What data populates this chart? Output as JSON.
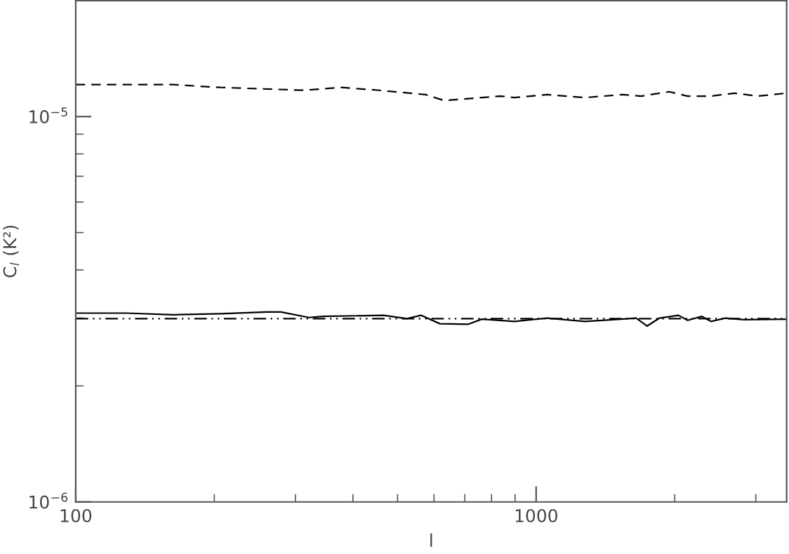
{
  "chart_data": {
    "type": "line",
    "xlabel": "l",
    "ylabel": "C$_{l}$ (K²)",
    "log": "xy",
    "xlim": [
      100,
      3500
    ],
    "ylim": [
      1e-06,
      2e-05
    ],
    "xticks": [
      100,
      1000
    ],
    "yticks": [
      {
        "value": 1e-06,
        "label": "10$^{−6}$"
      },
      {
        "value": 1e-05,
        "label": "10$^{−5}$"
      }
    ],
    "grid": false,
    "series": [
      {
        "color": "#000000",
        "line_style": "solid",
        "x": [
          100,
          129,
          163,
          206,
          260,
          279,
          321,
          344,
          466,
          524,
          562,
          618,
          711,
          762,
          898,
          1057,
          1276,
          1469,
          1649,
          1741,
          1854,
          2037,
          2133,
          2291,
          2399,
          2576,
          2827,
          3490
        ],
        "values": [
          3.09e-06,
          3.09e-06,
          3.06e-06,
          3.08e-06,
          3.11e-06,
          3.11e-06,
          3.01e-06,
          3.03e-06,
          3.05e-06,
          2.99e-06,
          3.05e-06,
          2.9e-06,
          2.89e-06,
          2.98e-06,
          2.94e-06,
          3e-06,
          2.94e-06,
          2.97e-06,
          3e-06,
          2.86e-06,
          3e-06,
          3.05e-06,
          2.96e-06,
          3.03e-06,
          2.94e-06,
          3e-06,
          2.97e-06,
          2.98e-06
        ]
      },
      {
        "color": "#000000",
        "line_style": "dashed",
        "x": [
          100,
          163,
          206,
          313,
          378,
          456,
          575,
          632,
          694,
          837,
          898,
          1057,
          1276,
          1538,
          1690,
          1945,
          2133,
          2399,
          2698,
          3034,
          3490
        ],
        "values": [
          1.21e-05,
          1.21e-05,
          1.19e-05,
          1.17e-05,
          1.19e-05,
          1.17e-05,
          1.14e-05,
          1.1e-05,
          1.11e-05,
          1.13e-05,
          1.12e-05,
          1.14e-05,
          1.12e-05,
          1.14e-05,
          1.13e-05,
          1.16e-05,
          1.13e-05,
          1.13e-05,
          1.15e-05,
          1.13e-05,
          1.15e-05
        ]
      },
      {
        "color": "#000000",
        "line_style": "dashdot",
        "x": [
          100,
          3500
        ],
        "values": [
          2.99e-06,
          2.99e-06
        ]
      }
    ]
  }
}
